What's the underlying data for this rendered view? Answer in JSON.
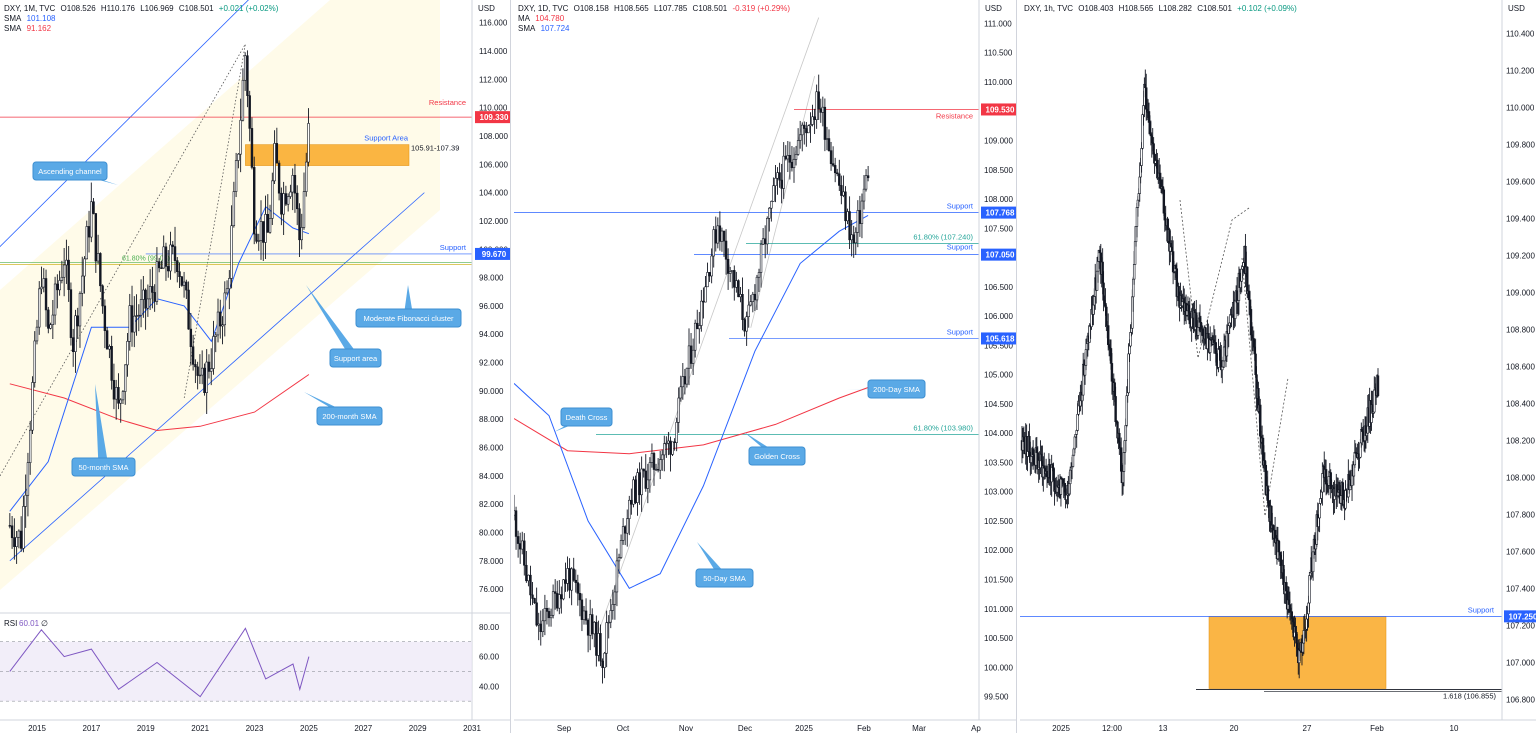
{
  "panels": [
    {
      "id": "monthly",
      "symbol": "DXY, 1M, TVC",
      "ohlc": {
        "o": "O108.526",
        "h": "H110.176",
        "l": "L106.969",
        "c": "C108.501",
        "chg": "+0.021 (+0.02%)"
      },
      "indicators": [
        {
          "name": "SMA",
          "value": "101.108",
          "color": "#2962ff"
        },
        {
          "name": "SMA",
          "value": "91.162",
          "color": "#f23645"
        }
      ],
      "currency": "USD",
      "chart_data": {
        "type": "candlestick",
        "timeframe": "1M",
        "x_ticks": [
          "2015",
          "2017",
          "2019",
          "2021",
          "2023",
          "2025",
          "2027",
          "2029",
          "2031"
        ],
        "y_ticks": [
          "76.000",
          "78.000",
          "80.000",
          "82.000",
          "84.000",
          "86.000",
          "88.000",
          "90.000",
          "92.000",
          "94.000",
          "96.000",
          "98.000",
          "100.000",
          "102.000",
          "104.000",
          "106.000",
          "108.000",
          "110.000",
          "112.000",
          "114.000",
          "116.000"
        ],
        "ylim": [
          74.6,
          117.6
        ],
        "price_path": [
          {
            "t": "2014-01",
            "v": 80.5
          },
          {
            "t": "2014-06",
            "v": 79.5
          },
          {
            "t": "2015-03",
            "v": 98.5
          },
          {
            "t": "2015-06",
            "v": 94.0
          },
          {
            "t": "2016-01",
            "v": 99.5
          },
          {
            "t": "2016-05",
            "v": 93.5
          },
          {
            "t": "2017-01",
            "v": 103.0
          },
          {
            "t": "2017-06",
            "v": 96.0
          },
          {
            "t": "2018-01",
            "v": 88.5
          },
          {
            "t": "2018-06",
            "v": 95.0
          },
          {
            "t": "2019-01",
            "v": 96.0
          },
          {
            "t": "2019-09",
            "v": 99.0
          },
          {
            "t": "2020-03",
            "v": 99.5
          },
          {
            "t": "2020-06",
            "v": 97.0
          },
          {
            "t": "2021-01",
            "v": 90.0
          },
          {
            "t": "2021-06",
            "v": 92.5
          },
          {
            "t": "2022-01",
            "v": 97.0
          },
          {
            "t": "2022-09",
            "v": 114.0
          },
          {
            "t": "2023-01",
            "v": 102.0
          },
          {
            "t": "2023-07",
            "v": 101.0
          },
          {
            "t": "2023-10",
            "v": 106.5
          },
          {
            "t": "2024-01",
            "v": 103.5
          },
          {
            "t": "2024-06",
            "v": 105.5
          },
          {
            "t": "2024-09",
            "v": 100.5
          },
          {
            "t": "2025-01",
            "v": 108.5
          }
        ],
        "sma_blue_path": [
          {
            "t": "2014-01",
            "v": 81.5
          },
          {
            "t": "2015-06",
            "v": 85.0
          },
          {
            "t": "2017-01",
            "v": 94.5
          },
          {
            "t": "2018-06",
            "v": 94.5
          },
          {
            "t": "2019-06",
            "v": 96.5
          },
          {
            "t": "2020-06",
            "v": 96.0
          },
          {
            "t": "2021-06",
            "v": 93.5
          },
          {
            "t": "2022-06",
            "v": 99.0
          },
          {
            "t": "2023-06",
            "v": 103.0
          },
          {
            "t": "2024-06",
            "v": 101.5
          },
          {
            "t": "2025-01",
            "v": 101.1
          }
        ],
        "sma_red_path": [
          {
            "t": "2014-01",
            "v": 90.5
          },
          {
            "t": "2016-01",
            "v": 89.5
          },
          {
            "t": "2018-01",
            "v": 88.0
          },
          {
            "t": "2019-06",
            "v": 87.2
          },
          {
            "t": "2021-01",
            "v": 87.5
          },
          {
            "t": "2023-01",
            "v": 88.5
          },
          {
            "t": "2025-01",
            "v": 91.16
          }
        ],
        "channel_lines": [
          {
            "from": {
              "t": "2012-10",
              "v": 98.5
            },
            "to": {
              "t": "2023-04",
              "v": 118.5
            }
          },
          {
            "from": {
              "t": "2014-01",
              "v": 78.0
            },
            "to": {
              "t": "2029-04",
              "v": 104.0
            }
          }
        ],
        "levels": [
          {
            "label": "Resistance",
            "value": 109.33,
            "badge": "109.330",
            "color": "#f23645"
          },
          {
            "label": "Support",
            "value": 99.67,
            "badge": "99.670",
            "color": "#2962ff"
          },
          {
            "label": "61.80% (99.08)",
            "value": 99.08,
            "color": "#4caf50"
          }
        ],
        "support_area": {
          "label": "Support Area",
          "range_label": "105.91-107.39",
          "low": 105.91,
          "high": 107.39,
          "color": "#f9a825"
        },
        "callouts": [
          "Ascending channel",
          "Support area",
          "Moderate Fibonacci cluster",
          "200-month SMA",
          "50-month SMA"
        ],
        "rsi": {
          "label": "RSI",
          "value": "60.01",
          "extra": "∅",
          "ticks": [
            "80.00",
            "60.00",
            "40.00"
          ],
          "bands": [
            70,
            30
          ],
          "path": [
            {
              "t": "2014-01",
              "v": 50
            },
            {
              "t": "2015-03",
              "v": 78
            },
            {
              "t": "2016-01",
              "v": 60
            },
            {
              "t": "2017-01",
              "v": 65
            },
            {
              "t": "2018-01",
              "v": 38
            },
            {
              "t": "2019-06",
              "v": 56
            },
            {
              "t": "2021-01",
              "v": 33
            },
            {
              "t": "2022-09",
              "v": 79
            },
            {
              "t": "2023-06",
              "v": 45
            },
            {
              "t": "2024-06",
              "v": 55
            },
            {
              "t": "2024-09",
              "v": 38
            },
            {
              "t": "2025-01",
              "v": 60
            }
          ]
        }
      }
    },
    {
      "id": "daily",
      "symbol": "DXY, 1D, TVC",
      "ohlc": {
        "o": "O108.158",
        "h": "H108.565",
        "l": "L107.785",
        "c": "C108.501",
        "chg": "-0.319 (+0.29%)"
      },
      "indicators": [
        {
          "name": "MA",
          "value": "104.780",
          "color": "#f23645"
        },
        {
          "name": "SMA",
          "value": "107.724",
          "color": "#2962ff"
        }
      ],
      "currency": "USD",
      "chart_data": {
        "type": "candlestick",
        "timeframe": "1D",
        "x_ticks": [
          "Sep",
          "Oct",
          "Nov",
          "Dec",
          "2025",
          "Feb",
          "Mar",
          "Ap"
        ],
        "y_ticks": [
          "99.500",
          "100.000",
          "100.500",
          "101.000",
          "101.500",
          "102.000",
          "102.500",
          "103.000",
          "103.500",
          "104.000",
          "104.500",
          "105.000",
          "105.500",
          "106.000",
          "106.500",
          "107.000",
          "107.500",
          "108.000",
          "108.500",
          "109.000",
          "109.500",
          "110.000",
          "110.500",
          "111.000"
        ],
        "ylim": [
          99.1,
          111.4
        ],
        "price_path": [
          {
            "t": "2024-08-15",
            "v": 102.6
          },
          {
            "t": "2024-08-27",
            "v": 100.6
          },
          {
            "t": "2024-09-10",
            "v": 101.6
          },
          {
            "t": "2024-09-27",
            "v": 100.2
          },
          {
            "t": "2024-10-10",
            "v": 102.9
          },
          {
            "t": "2024-10-31",
            "v": 103.9
          },
          {
            "t": "2024-11-22",
            "v": 107.6
          },
          {
            "t": "2024-12-06",
            "v": 105.8
          },
          {
            "t": "2024-12-20",
            "v": 108.2
          },
          {
            "t": "2025-01-10",
            "v": 109.7
          },
          {
            "t": "2025-01-27",
            "v": 107.2
          },
          {
            "t": "2025-02-03",
            "v": 108.5
          }
        ],
        "ma_red_path": [
          {
            "t": "2024-08-15",
            "v": 104.25
          },
          {
            "t": "2024-09-10",
            "v": 103.7
          },
          {
            "t": "2024-10-10",
            "v": 103.65
          },
          {
            "t": "2024-11-15",
            "v": 103.8
          },
          {
            "t": "2024-12-20",
            "v": 104.15
          },
          {
            "t": "2025-01-20",
            "v": 104.6
          },
          {
            "t": "2025-02-03",
            "v": 104.78
          }
        ],
        "sma_blue_path": [
          {
            "t": "2024-08-15",
            "v": 104.85
          },
          {
            "t": "2024-09-01",
            "v": 104.3
          },
          {
            "t": "2024-09-20",
            "v": 102.5
          },
          {
            "t": "2024-10-10",
            "v": 101.35
          },
          {
            "t": "2024-10-25",
            "v": 101.6
          },
          {
            "t": "2024-11-15",
            "v": 103.1
          },
          {
            "t": "2024-12-10",
            "v": 105.4
          },
          {
            "t": "2025-01-01",
            "v": 106.9
          },
          {
            "t": "2025-01-20",
            "v": 107.45
          },
          {
            "t": "2025-02-03",
            "v": 107.72
          }
        ],
        "levels": [
          {
            "label": "Resistance",
            "value": 109.53,
            "badge": "109.530",
            "color": "#f23645"
          },
          {
            "label": "Support",
            "value": 107.768,
            "badge": "107.768",
            "color": "#2962ff"
          },
          {
            "label": "61.80% (107.240)",
            "value": 107.24,
            "color": "#26a69a"
          },
          {
            "label": "Support",
            "value": 107.05,
            "badge": "107.050",
            "color": "#2962ff"
          },
          {
            "label": "Support",
            "value": 105.618,
            "badge": "105.618",
            "color": "#2962ff"
          },
          {
            "label": "61.80% (103.980)",
            "value": 103.98,
            "color": "#26a69a"
          }
        ],
        "callouts": [
          "Death Cross",
          "Golden Cross",
          "200-Day SMA",
          "50-Day SMA"
        ]
      }
    },
    {
      "id": "hourly",
      "symbol": "DXY, 1h, TVC",
      "ohlc": {
        "o": "O108.403",
        "h": "H108.565",
        "l": "L108.282",
        "c": "C108.501",
        "chg": "+0.102 (+0.09%)"
      },
      "indicators": [],
      "currency": "USD",
      "chart_data": {
        "type": "candlestick",
        "timeframe": "1h",
        "x_ticks": [
          "2025",
          "12:00",
          "13",
          "20",
          "27",
          "Feb",
          "10"
        ],
        "y_ticks": [
          "106.800",
          "107.000",
          "107.200",
          "107.400",
          "107.600",
          "107.800",
          "108.000",
          "108.200",
          "108.400",
          "108.600",
          "108.800",
          "109.000",
          "109.200",
          "109.400",
          "109.600",
          "109.800",
          "110.000",
          "110.200",
          "110.400"
        ],
        "ylim": [
          106.69,
          110.58
        ],
        "price_path": [
          {
            "t": "2025-01-02",
            "v": 108.2
          },
          {
            "t": "2025-01-06",
            "v": 107.9
          },
          {
            "t": "2025-01-09",
            "v": 109.2
          },
          {
            "t": "2025-01-11",
            "v": 108.0
          },
          {
            "t": "2025-01-13",
            "v": 110.1
          },
          {
            "t": "2025-01-16",
            "v": 109.0
          },
          {
            "t": "2025-01-20",
            "v": 108.6
          },
          {
            "t": "2025-01-22",
            "v": 109.2
          },
          {
            "t": "2025-01-24",
            "v": 107.9
          },
          {
            "t": "2025-01-27",
            "v": 107.0
          },
          {
            "t": "2025-01-29",
            "v": 108.0
          },
          {
            "t": "2025-01-31",
            "v": 107.9
          },
          {
            "t": "2025-02-03",
            "v": 108.5
          }
        ],
        "levels": [
          {
            "label": "Support",
            "value": 107.25,
            "badge": "107.250",
            "color": "#2962ff"
          },
          {
            "label": "1.618 (106.855)",
            "value": 106.855,
            "color": "#131722"
          }
        ],
        "support_zone": {
          "low": 106.86,
          "high": 107.25,
          "color": "#f9a825"
        }
      }
    }
  ]
}
